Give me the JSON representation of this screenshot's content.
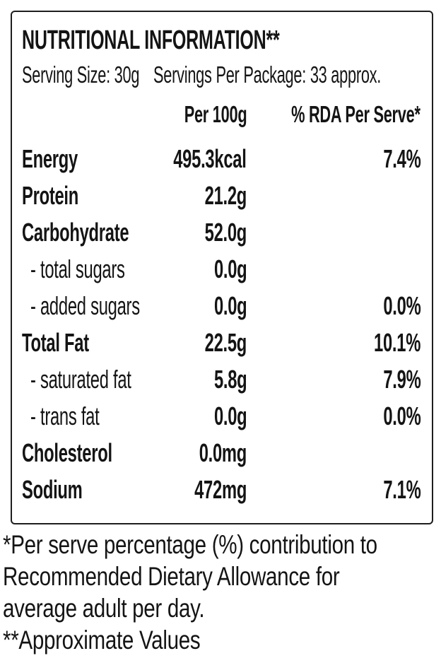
{
  "label": {
    "title": "NUTRITIONAL INFORMATION**",
    "serving_size": "Serving Size: 30g",
    "servings_per_package": "Servings Per Package: 33 approx.",
    "columns": {
      "per_100g": "Per 100g",
      "rda_per_serve": "% RDA Per Serve*"
    },
    "rows": [
      {
        "name": "Energy",
        "per100": "495.3kcal",
        "rda": "7.4%",
        "level": "main"
      },
      {
        "name": "Protein",
        "per100": "21.2g",
        "rda": "",
        "level": "main"
      },
      {
        "name": "Carbohydrate",
        "per100": "52.0g",
        "rda": "",
        "level": "main"
      },
      {
        "name": "- total sugars",
        "per100": "0.0g",
        "rda": "",
        "level": "sub"
      },
      {
        "name": "- added sugars",
        "per100": "0.0g",
        "rda": "0.0%",
        "level": "sub"
      },
      {
        "name": "Total Fat",
        "per100": "22.5g",
        "rda": "10.1%",
        "level": "main"
      },
      {
        "name": "- saturated fat",
        "per100": "5.8g",
        "rda": "7.9%",
        "level": "sub"
      },
      {
        "name": "- trans fat",
        "per100": "0.0g",
        "rda": "0.0%",
        "level": "sub"
      },
      {
        "name": "Cholesterol",
        "per100": "0.0mg",
        "rda": "",
        "level": "main"
      },
      {
        "name": "Sodium",
        "per100": "472mg",
        "rda": "7.1%",
        "level": "main"
      }
    ],
    "colors": {
      "text": "#141414",
      "border": "#1e1e1e",
      "background": "#ffffff"
    }
  },
  "footnotes": {
    "lines": [
      "*Per serve percentage (%) contribution to",
      "Recommended Dietary Allowance for",
      "average adult per day.",
      "**Approximate Values"
    ]
  }
}
